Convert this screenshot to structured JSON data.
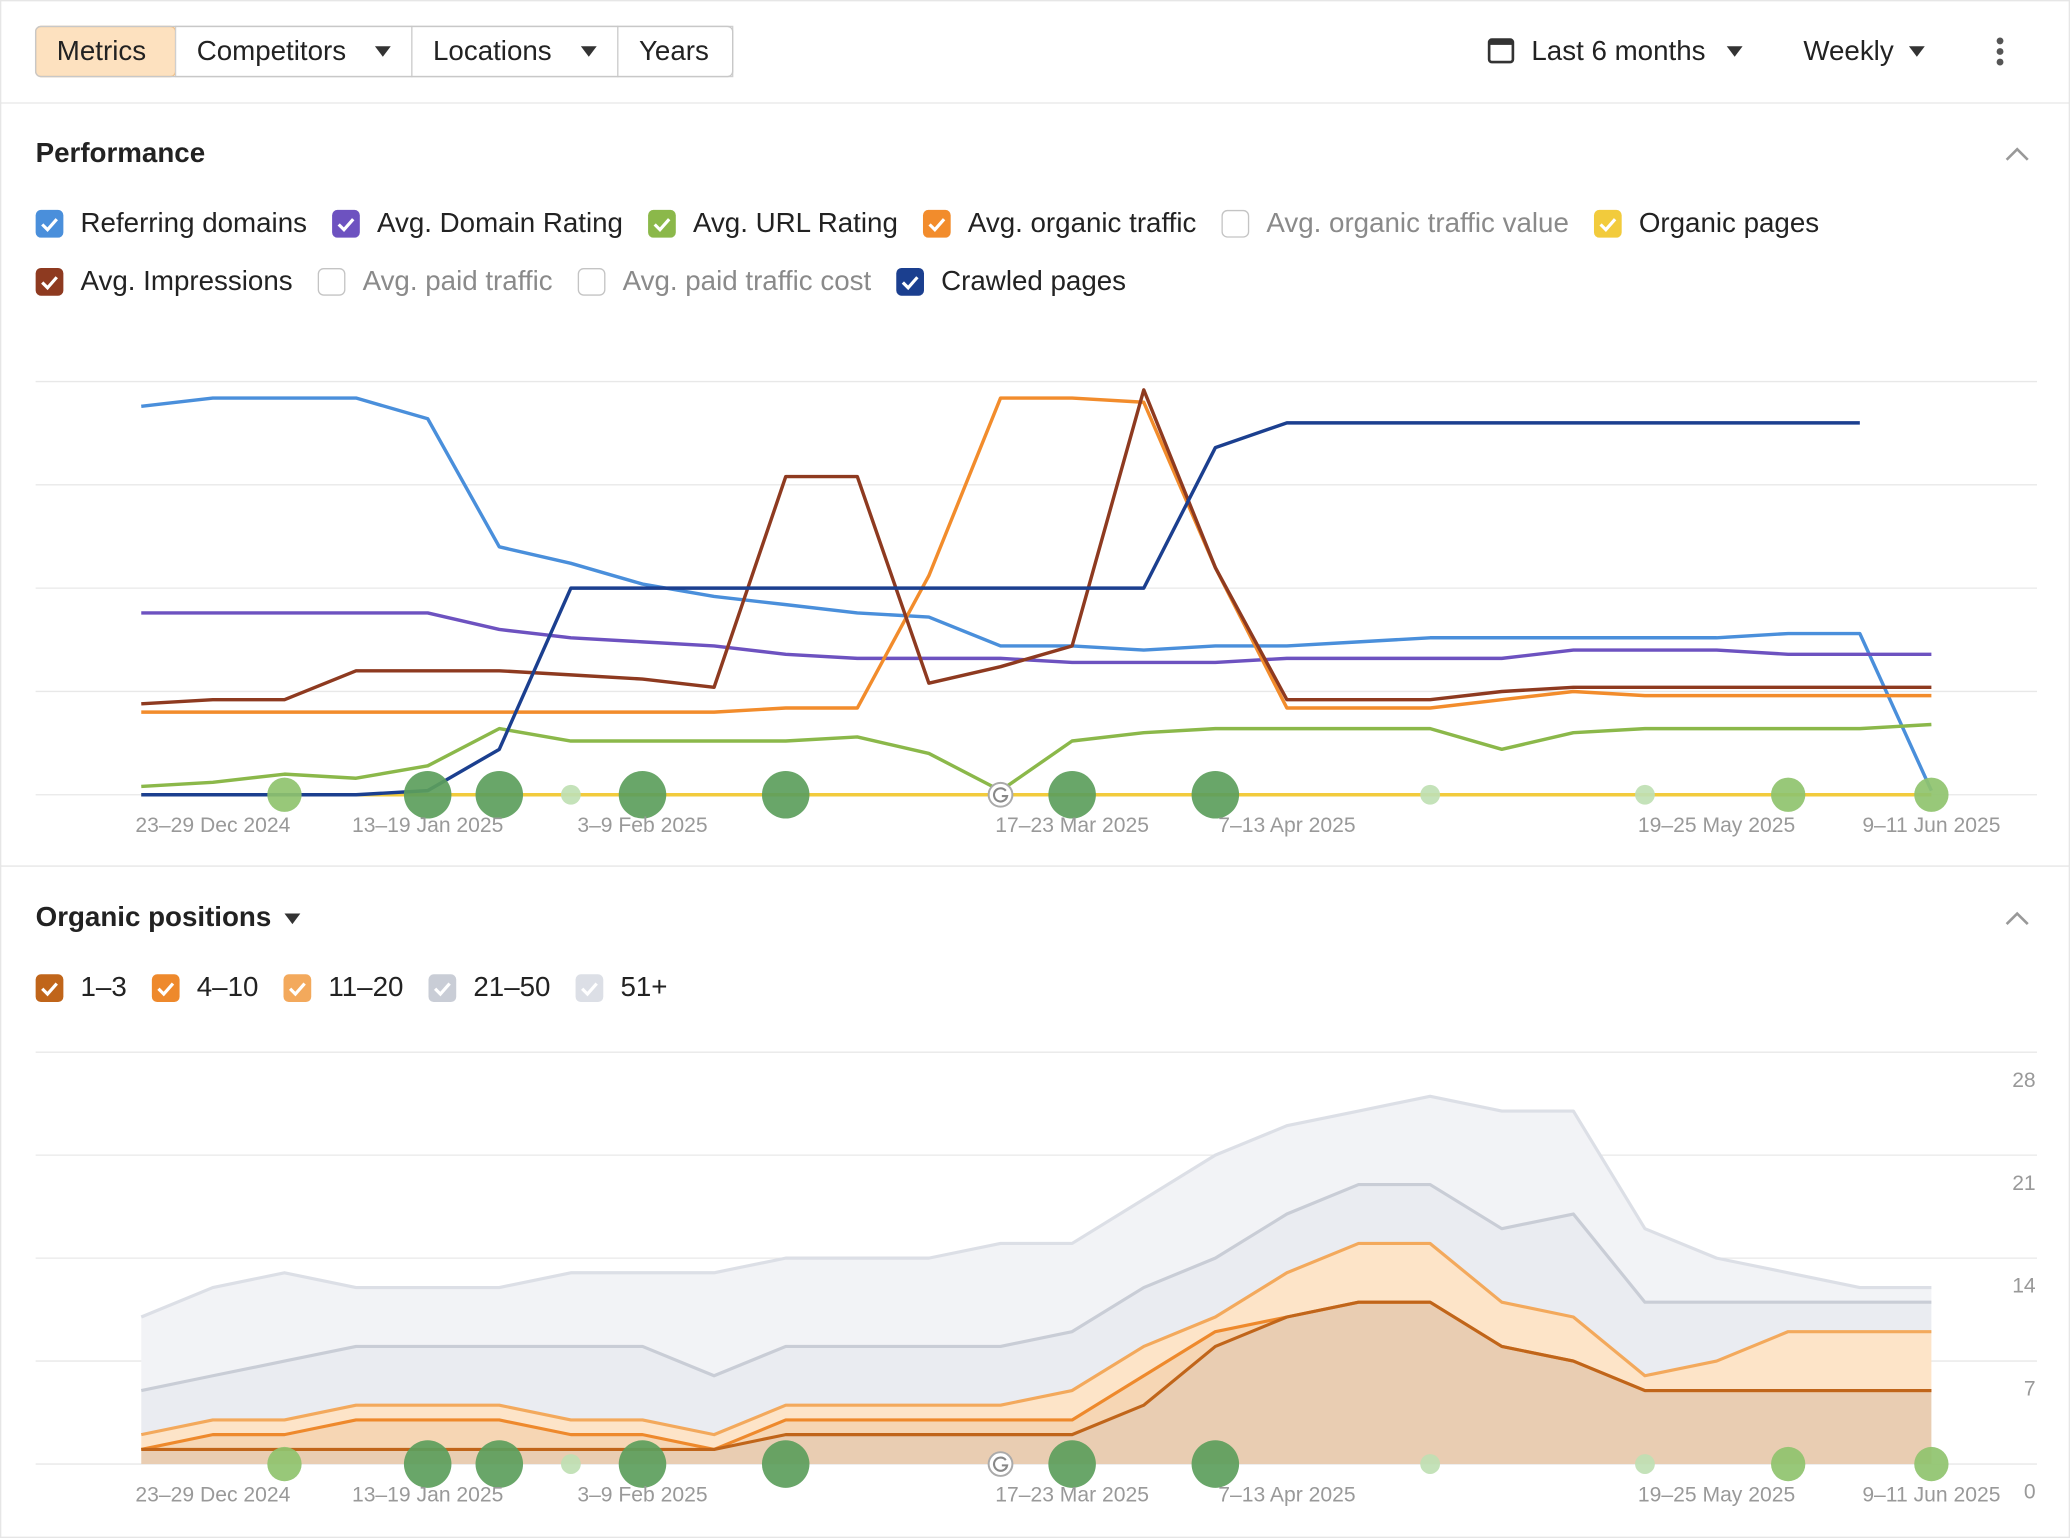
{
  "toolbar": {
    "tabs": [
      "Metrics",
      "Competitors",
      "Locations",
      "Years"
    ],
    "active_tab": 0,
    "dropdown_tabs": [
      1,
      2
    ],
    "period": "Last 6 months",
    "interval": "Weekly"
  },
  "events": [
    {
      "index": 2,
      "kind": "medium"
    },
    {
      "index": 4,
      "kind": "large"
    },
    {
      "index": 5,
      "kind": "large"
    },
    {
      "index": 6,
      "kind": "small"
    },
    {
      "index": 7,
      "kind": "large"
    },
    {
      "index": 9,
      "kind": "large"
    },
    {
      "index": 12,
      "kind": "google"
    },
    {
      "index": 13,
      "kind": "large"
    },
    {
      "index": 15,
      "kind": "large"
    },
    {
      "index": 18,
      "kind": "small"
    },
    {
      "index": 21,
      "kind": "small"
    },
    {
      "index": 23,
      "kind": "medium"
    },
    {
      "index": 25,
      "kind": "medium"
    }
  ],
  "chart_data": [
    {
      "type": "line",
      "title": "Performance",
      "grid": true,
      "categories": [
        null,
        "23–29 Dec 2024",
        null,
        null,
        "13–19 Jan 2025",
        null,
        null,
        "3–9 Feb 2025",
        null,
        null,
        null,
        null,
        null,
        "17–23 Mar 2025",
        null,
        null,
        "7–13 Apr 2025",
        null,
        null,
        null,
        null,
        null,
        "19–25 May 2025",
        null,
        null,
        "9–11 Jun 2025"
      ],
      "ylim": [
        0,
        100
      ],
      "series": [
        {
          "name": "Referring domains",
          "color": "#4a8fdb",
          "visible": true,
          "values": [
            94,
            96,
            96,
            96,
            91,
            60,
            56,
            51,
            48,
            46,
            44,
            43,
            36,
            36,
            35,
            36,
            36,
            37,
            38,
            38,
            38,
            38,
            38,
            39,
            39,
            1
          ]
        },
        {
          "name": "Avg. Domain Rating",
          "color": "#6d52c0",
          "visible": true,
          "values": [
            44,
            44,
            44,
            44,
            44,
            40,
            38,
            37,
            36,
            34,
            33,
            33,
            33,
            32,
            32,
            32,
            33,
            33,
            33,
            33,
            35,
            35,
            35,
            34,
            34,
            34
          ]
        },
        {
          "name": "Avg. URL Rating",
          "color": "#8bb84a",
          "visible": true,
          "values": [
            2,
            3,
            5,
            4,
            7,
            16,
            13,
            13,
            13,
            13,
            14,
            10,
            1,
            13,
            15,
            16,
            16,
            16,
            16,
            11,
            15,
            16,
            16,
            16,
            16,
            17
          ]
        },
        {
          "name": "Avg. organic traffic",
          "color": "#f28c2c",
          "visible": true,
          "values": [
            20,
            20,
            20,
            20,
            20,
            20,
            20,
            20,
            20,
            21,
            21,
            53,
            96,
            96,
            95,
            55,
            21,
            21,
            21,
            23,
            25,
            24,
            24,
            24,
            24,
            24
          ]
        },
        {
          "name": "Avg. organic traffic value",
          "color": "#bbbbbb",
          "visible": false,
          "values": null
        },
        {
          "name": "Organic pages",
          "color": "#f2cb3c",
          "visible": true,
          "values": [
            0,
            0,
            0,
            0,
            0,
            0,
            0,
            0,
            0,
            0,
            0,
            0,
            0,
            0,
            0,
            0,
            0,
            0,
            0,
            0,
            0,
            0,
            0,
            0,
            0,
            0
          ]
        },
        {
          "name": "Avg. Impressions",
          "color": "#8e3a20",
          "visible": true,
          "values": [
            22,
            23,
            23,
            30,
            30,
            30,
            29,
            28,
            26,
            77,
            77,
            27,
            31,
            36,
            98,
            55,
            23,
            23,
            23,
            25,
            26,
            26,
            26,
            26,
            26,
            26
          ]
        },
        {
          "name": "Avg. paid traffic",
          "color": "#bbbbbb",
          "visible": false,
          "values": null
        },
        {
          "name": "Avg. paid traffic cost",
          "color": "#bbbbbb",
          "visible": false,
          "values": null
        },
        {
          "name": "Crawled pages",
          "color": "#1b3f8f",
          "visible": true,
          "values": [
            0,
            0,
            0,
            0,
            1,
            11,
            50,
            50,
            50,
            50,
            50,
            50,
            50,
            50,
            50,
            84,
            90,
            90,
            90,
            90,
            90,
            90,
            90,
            90,
            90,
            null
          ]
        }
      ]
    },
    {
      "type": "stacked-area",
      "title": "Organic positions",
      "grid": true,
      "categories": [
        null,
        "23–29 Dec 2024",
        null,
        null,
        "13–19 Jan 2025",
        null,
        null,
        "3–9 Feb 2025",
        null,
        null,
        null,
        null,
        null,
        "17–23 Mar 2025",
        null,
        null,
        "7–13 Apr 2025",
        null,
        null,
        null,
        null,
        null,
        "19–25 May 2025",
        null,
        null,
        "9–11 Jun 2025"
      ],
      "ylim": [
        0,
        28
      ],
      "yticks": [
        0,
        7,
        14,
        21,
        28
      ],
      "y_axis_side": "right",
      "series": [
        {
          "name": "1–3",
          "color": "#c0651a",
          "fill": "#e9cdb2",
          "visible": true,
          "values": [
            1,
            1,
            1,
            1,
            1,
            1,
            1,
            1,
            1,
            2,
            2,
            2,
            2,
            2,
            4,
            8,
            10,
            11,
            11,
            8,
            7,
            5,
            5,
            5,
            5,
            5
          ]
        },
        {
          "name": "4–10",
          "color": "#ee892c",
          "fill": "#f6d6b4",
          "visible": true,
          "values": [
            0,
            1,
            1,
            2,
            2,
            2,
            1,
            1,
            0,
            1,
            1,
            1,
            1,
            1,
            2,
            1,
            0,
            0,
            0,
            0,
            0,
            0,
            0,
            0,
            0,
            0
          ]
        },
        {
          "name": "11–20",
          "color": "#f3a95c",
          "fill": "#fde4c8",
          "visible": true,
          "values": [
            1,
            1,
            1,
            1,
            1,
            1,
            1,
            1,
            1,
            1,
            1,
            1,
            1,
            2,
            2,
            1,
            3,
            4,
            4,
            3,
            3,
            1,
            2,
            4,
            4,
            4
          ]
        },
        {
          "name": "21–50",
          "color": "#c9cdd6",
          "fill": "#eaecf1",
          "visible": true,
          "values": [
            3,
            3,
            4,
            4,
            4,
            4,
            5,
            5,
            4,
            4,
            4,
            4,
            4,
            4,
            4,
            4,
            4,
            4,
            4,
            5,
            7,
            5,
            4,
            2,
            2,
            2
          ]
        },
        {
          "name": "51+",
          "color": "#dcdfe6",
          "fill": "#f2f3f6",
          "visible": true,
          "values": [
            5,
            6,
            6,
            4,
            4,
            4,
            5,
            5,
            7,
            6,
            6,
            6,
            7,
            6,
            6,
            7,
            6,
            5,
            6,
            8,
            7,
            5,
            3,
            2,
            1,
            1
          ]
        }
      ]
    }
  ]
}
